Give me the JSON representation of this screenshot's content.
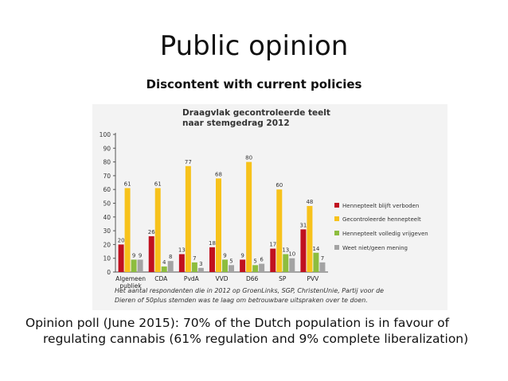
{
  "slide": {
    "title": "Public opinion",
    "subtitle": "Discontent with current policies",
    "caption_line1": "Opinion poll (June 2015): 70% of the Dutch population is in favour of",
    "caption_line2": "regulating cannabis (61% regulation and 9% complete liberalization)"
  },
  "chart_data": {
    "type": "bar",
    "title": "Draagvlak gecontroleerde teelt naar stemgedrag 2012",
    "title_lines": [
      "Draagvlak gecontroleerde teelt",
      "naar stemgedrag 2012"
    ],
    "categories": [
      "Algemeen publiek",
      "CDA",
      "PvdA",
      "VVD",
      "D66",
      "SP",
      "PVV"
    ],
    "category_lines": [
      [
        "Algemeen",
        "publiek"
      ],
      [
        "CDA"
      ],
      [
        "PvdA"
      ],
      [
        "VVD"
      ],
      [
        "D66"
      ],
      [
        "SP"
      ],
      [
        "PVV"
      ]
    ],
    "ylim": [
      0,
      100
    ],
    "yticks": [
      0,
      10,
      20,
      30,
      40,
      50,
      60,
      70,
      80,
      90,
      100
    ],
    "grid": false,
    "legend_position": "right",
    "series": [
      {
        "name": "Hennepteelt blijft verboden",
        "color": "#c0111f",
        "values": [
          20,
          26,
          13,
          18,
          9,
          17,
          31
        ]
      },
      {
        "name": "Gecontroleerde hennepteelt",
        "color": "#f7c21b",
        "values": [
          61,
          61,
          77,
          68,
          80,
          60,
          48
        ]
      },
      {
        "name": "Hennepteelt volledig vrijgeven",
        "color": "#8dbd3e",
        "values": [
          9,
          4,
          7,
          9,
          5,
          13,
          14
        ]
      },
      {
        "name": "Weet niet/geen mening",
        "color": "#a3a3a3",
        "values": [
          9,
          8,
          3,
          5,
          6,
          10,
          7
        ]
      }
    ],
    "footnote_lines": [
      "Het aantal respondenten die in 2012 op GroenLinks, SGP, ChristenUnie, Partij voor de",
      "Dieren of 50plus stemden was te laag om betrouwbare uitspraken over te doen."
    ]
  }
}
